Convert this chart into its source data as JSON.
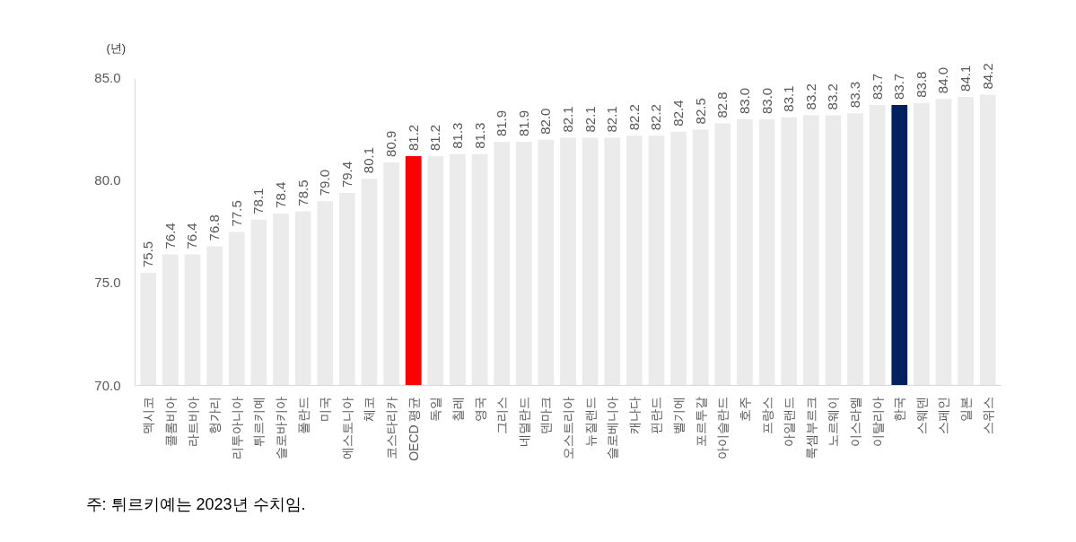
{
  "chart_data": {
    "type": "bar",
    "ylabel": "(년)",
    "categories": [
      "멕시코",
      "콜롬비아",
      "라트비아",
      "헝가리",
      "리투아니아",
      "튀르키예",
      "슬로바키아",
      "폴란드",
      "미국",
      "에스토니아",
      "체코",
      "코스타리카",
      "OECD 평균",
      "독일",
      "칠레",
      "영국",
      "그리스",
      "네덜란드",
      "덴마크",
      "오스트리아",
      "뉴질랜드",
      "슬로베니아",
      "캐나다",
      "핀란드",
      "벨기에",
      "포르투갈",
      "아이슬란드",
      "호주",
      "프랑스",
      "아일랜드",
      "룩셈부르크",
      "노르웨이",
      "이스라엘",
      "이탈리아",
      "한국",
      "스웨덴",
      "스페인",
      "일본",
      "스위스"
    ],
    "values": [
      75.5,
      76.4,
      76.4,
      76.8,
      77.5,
      78.1,
      78.4,
      78.5,
      79.0,
      79.4,
      80.1,
      80.9,
      81.2,
      81.2,
      81.3,
      81.3,
      81.9,
      81.9,
      82.0,
      82.1,
      82.1,
      82.1,
      82.2,
      82.2,
      82.4,
      82.5,
      82.8,
      83.0,
      83.0,
      83.1,
      83.2,
      83.2,
      83.3,
      83.7,
      83.7,
      83.8,
      84.0,
      84.1,
      84.2
    ],
    "value_labels": [
      "75.5",
      "76.4",
      "76.4",
      "76.8",
      "77.5",
      "78.1",
      "78.4",
      "78.5",
      "79.0",
      "79.4",
      "80.1",
      "80.9",
      "81.2",
      "81.2",
      "81.3",
      "81.3",
      "81.9",
      "81.9",
      "82.0",
      "82.1",
      "82.1",
      "82.1",
      "82.2",
      "82.2",
      "82.4",
      "82.5",
      "82.8",
      "83.0",
      "83.0",
      "83.1",
      "83.2",
      "83.2",
      "83.3",
      "83.7",
      "83.7",
      "83.8",
      "84.0",
      "84.1",
      "84.2"
    ],
    "colors": [
      "#ebebeb",
      "#ebebeb",
      "#ebebeb",
      "#ebebeb",
      "#ebebeb",
      "#ebebeb",
      "#ebebeb",
      "#ebebeb",
      "#ebebeb",
      "#ebebeb",
      "#ebebeb",
      "#ebebeb",
      "#ff0000",
      "#ebebeb",
      "#ebebeb",
      "#ebebeb",
      "#ebebeb",
      "#ebebeb",
      "#ebebeb",
      "#ebebeb",
      "#ebebeb",
      "#ebebeb",
      "#ebebeb",
      "#ebebeb",
      "#ebebeb",
      "#ebebeb",
      "#ebebeb",
      "#ebebeb",
      "#ebebeb",
      "#ebebeb",
      "#ebebeb",
      "#ebebeb",
      "#ebebeb",
      "#ebebeb",
      "#002060",
      "#ebebeb",
      "#ebebeb",
      "#ebebeb",
      "#ebebeb"
    ],
    "ylim": [
      70,
      85
    ],
    "yticks": [
      {
        "value": 70,
        "label": "70.0"
      },
      {
        "value": 75,
        "label": "75.0"
      },
      {
        "value": 80,
        "label": "80.0"
      },
      {
        "value": 85,
        "label": "85.0"
      }
    ],
    "grid": false,
    "annotations": [
      "주: 튀르키예는 2023년 수치임."
    ]
  }
}
